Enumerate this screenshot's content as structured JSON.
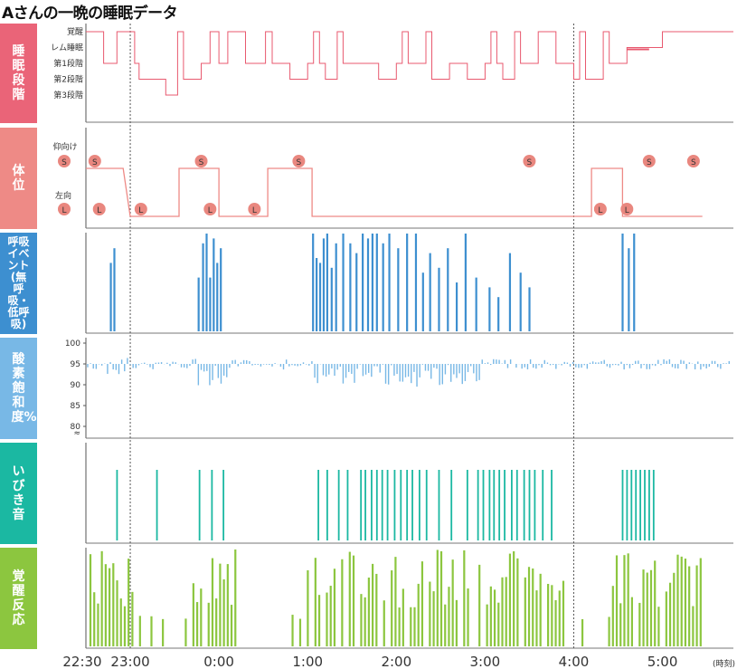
{
  "title": "Aさんの一晩の睡眠データ",
  "panels": {
    "sleep_stage": "睡眠段階",
    "position": "体位",
    "resp_events": "呼吸イベント(無呼吸・低呼吸)",
    "spo2": "酸素飽和度%",
    "snoring": "いびき音",
    "arousal": "覚醒反応"
  },
  "time_unit": "(時刻)",
  "colors": {
    "sleep": "#e8596f",
    "position": "#ee8a86",
    "resp": "#3d8fd0",
    "spo2": "#78b8e6",
    "snore": "#1bb8a2",
    "arousal": "#8cc63f",
    "marker": "#e9877f"
  },
  "chart_data": [
    {
      "type": "line",
      "name": "sleep_stage",
      "categories": [
        "覚醒",
        "レム睡眠",
        "第1段階",
        "第2段階",
        "第3段階"
      ],
      "x_ticks": [
        "22:30",
        "23:00",
        "0:00",
        "1:00",
        "2:00",
        "3:00",
        "4:00",
        "5:00"
      ],
      "x": [
        22.5,
        22.65,
        22.7,
        22.85,
        23.05,
        23.1,
        23.3,
        23.4,
        23.6,
        23.8,
        23.9,
        24.0,
        24.1,
        24.3,
        24.6,
        24.8,
        25.0,
        25.2,
        25.4,
        25.6,
        25.8,
        26.0,
        26.2,
        26.4,
        26.6,
        26.8,
        27.0,
        27.2,
        27.4,
        27.6,
        27.8,
        28.0,
        28.2,
        28.4,
        28.6,
        28.8,
        29.0,
        29.2,
        29.4
      ],
      "y": [
        "覚醒",
        "覚醒",
        "第1段階",
        "覚醒",
        "第1段階",
        "第2段階",
        "第2段階",
        "第3段階",
        "第2段階",
        "第1段階",
        "覚醒",
        "第1段階",
        "覚醒",
        "第1段階",
        "第1段階",
        "第2段階",
        "第1段階",
        "第2段階",
        "第1段階",
        "第1段階",
        "第2段階",
        "第1段階",
        "第1段階",
        "第2段階",
        "第1段階",
        "第2段階",
        "第1段階",
        "第2段階",
        "第1段階",
        "覚醒",
        "第1段階",
        "第2段階",
        "第2段階",
        "第1段階",
        "レム睡眠",
        "レム睡眠",
        "覚醒",
        "覚醒",
        "覚醒"
      ]
    },
    {
      "type": "line",
      "name": "position",
      "categories": [
        "仰向け",
        "左向"
      ],
      "x": [
        22.5,
        22.92,
        23.0,
        23.55,
        23.55,
        24.0,
        24.0,
        24.55,
        24.55,
        25.05,
        25.05,
        28.2,
        28.2,
        28.55,
        28.55,
        29.45
      ],
      "y": [
        "仰向け",
        "仰向け",
        "左向",
        "左向",
        "仰向け",
        "仰向け",
        "左向",
        "左向",
        "仰向け",
        "仰向け",
        "左向",
        "左向",
        "仰向け",
        "仰向け",
        "左向",
        "左向"
      ],
      "markers": [
        {
          "x": 22.6,
          "label": "S"
        },
        {
          "x": 22.65,
          "label": "L"
        },
        {
          "x": 23.12,
          "label": "L"
        },
        {
          "x": 23.8,
          "label": "S"
        },
        {
          "x": 23.9,
          "label": "L"
        },
        {
          "x": 24.4,
          "label": "L"
        },
        {
          "x": 24.9,
          "label": "S"
        },
        {
          "x": 27.5,
          "label": "S"
        },
        {
          "x": 28.3,
          "label": "L"
        },
        {
          "x": 28.6,
          "label": "L"
        },
        {
          "x": 28.85,
          "label": "S"
        },
        {
          "x": 29.35,
          "label": "S"
        }
      ]
    },
    {
      "type": "bar",
      "name": "resp_events",
      "x": [
        22.78,
        22.82,
        23.77,
        23.82,
        23.86,
        23.9,
        23.94,
        23.98,
        24.02,
        25.06,
        25.1,
        25.14,
        25.18,
        25.22,
        25.27,
        25.32,
        25.4,
        25.48,
        25.55,
        25.62,
        25.68,
        25.73,
        25.78,
        25.85,
        25.92,
        26.02,
        26.12,
        26.22,
        26.3,
        26.38,
        26.48,
        26.58,
        26.68,
        26.78,
        26.9,
        27.05,
        27.15,
        27.28,
        27.4,
        27.5,
        28.55,
        28.62,
        28.68
      ],
      "values": [
        0.7,
        0.85,
        0.55,
        0.9,
        1.0,
        0.55,
        0.95,
        0.7,
        0.85,
        1.0,
        0.75,
        0.7,
        0.95,
        1.0,
        0.65,
        0.9,
        1.0,
        0.9,
        0.8,
        1.0,
        0.95,
        1.0,
        1.0,
        0.9,
        1.0,
        0.85,
        1.0,
        1.0,
        0.6,
        0.8,
        0.65,
        0.85,
        0.5,
        1.0,
        0.55,
        0.45,
        0.35,
        0.8,
        0.6,
        0.45,
        1.0,
        0.85,
        1.0
      ]
    },
    {
      "type": "bar",
      "name": "spo2",
      "y_ticks": [
        100,
        95,
        90,
        85,
        80
      ],
      "ylim": [
        80,
        100
      ],
      "baseline": 95
    },
    {
      "type": "bar",
      "name": "snoring",
      "x": [
        22.85,
        23.3,
        23.78,
        23.92,
        24.05,
        25.12,
        25.22,
        25.35,
        25.45,
        25.6,
        25.65,
        25.72,
        25.78,
        25.84,
        25.9,
        25.98,
        26.05,
        26.12,
        26.18,
        26.26,
        26.34,
        26.48,
        26.62,
        26.8,
        26.92,
        26.98,
        27.05,
        27.1,
        27.16,
        27.22,
        27.3,
        27.36,
        27.44,
        27.5,
        27.56,
        27.65,
        27.75,
        28.55,
        28.6,
        28.65,
        28.7,
        28.75,
        28.8,
        28.85,
        28.9
      ],
      "values": [
        1,
        1,
        1,
        1,
        1,
        1,
        1,
        1,
        1,
        1,
        1,
        1,
        1,
        1,
        1,
        1,
        1,
        1,
        1,
        1,
        1,
        1,
        1,
        1,
        1,
        1,
        1,
        1,
        1,
        1,
        1,
        1,
        1,
        1,
        1,
        1,
        1,
        1,
        1,
        1,
        1,
        1,
        1,
        1,
        1
      ]
    },
    {
      "type": "bar",
      "name": "arousal"
    }
  ]
}
